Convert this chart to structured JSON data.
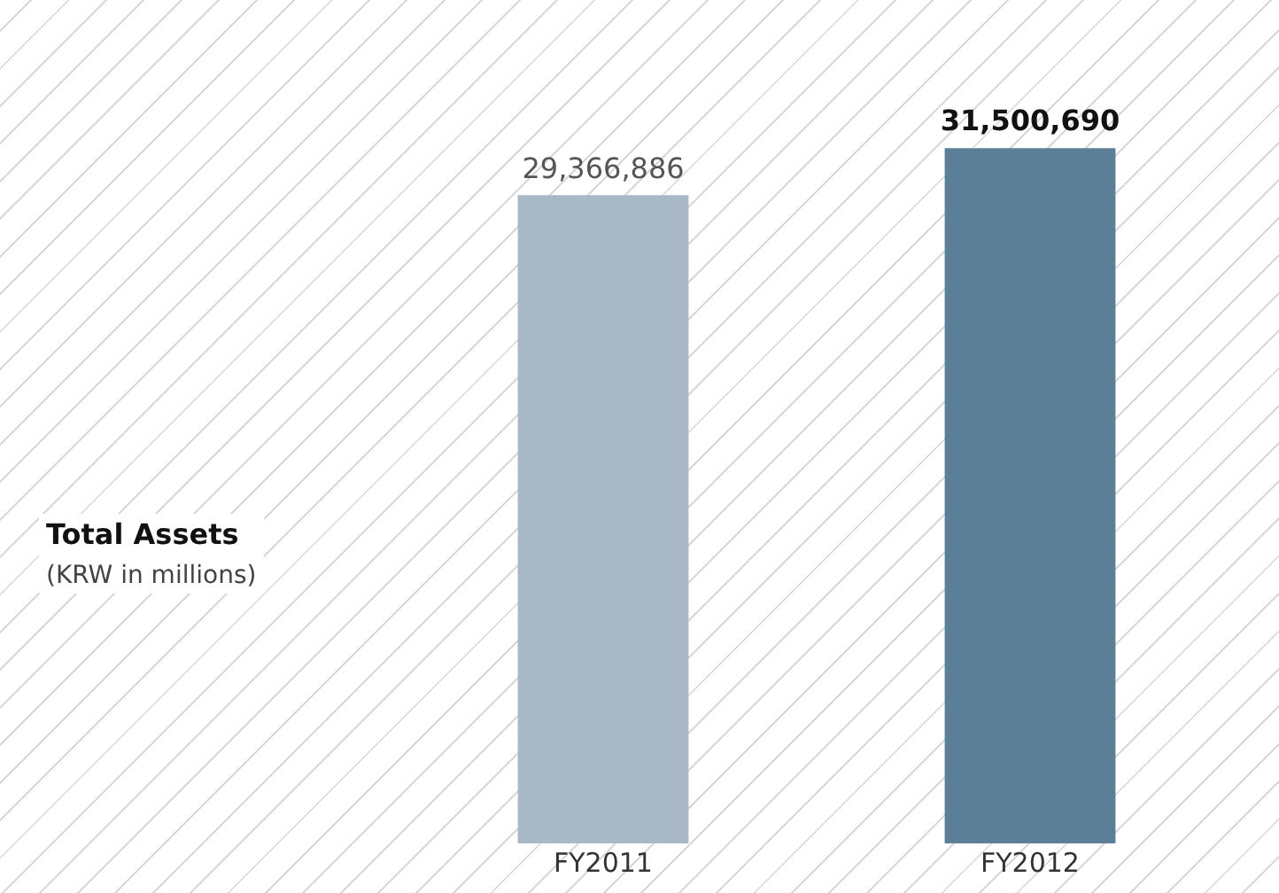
{
  "chart_data": {
    "type": "bar",
    "title": "Total Assets",
    "subtitle": "(KRW in millions)",
    "categories": [
      "FY2011",
      "FY2012"
    ],
    "values": [
      29366886,
      31500690
    ],
    "value_labels": [
      "29,366,886",
      "31,500,690"
    ],
    "colors": [
      "#a9b8c7",
      "#5b7f96"
    ],
    "legend": false,
    "grid": false
  }
}
